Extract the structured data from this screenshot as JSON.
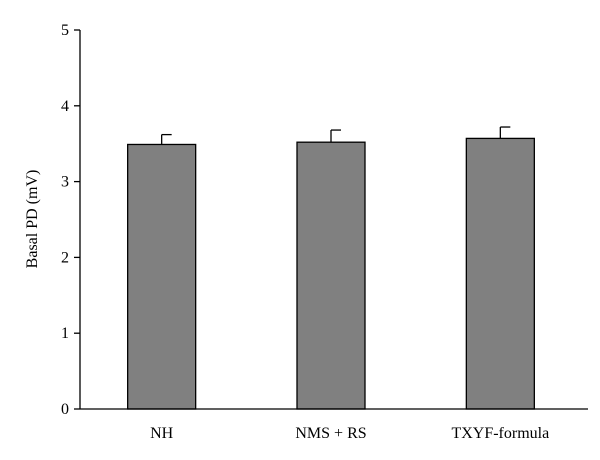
{
  "chart_data": {
    "type": "bar",
    "title": "",
    "xlabel": "",
    "ylabel": "Basal PD (mV)",
    "ylim": [
      0,
      5
    ],
    "yticks": [
      0,
      1,
      2,
      3,
      4,
      5
    ],
    "grid": false,
    "legend": "none",
    "categories": [
      "NH",
      "NMS + RS",
      "TXYF-formula"
    ],
    "values": [
      3.49,
      3.52,
      3.57
    ],
    "errors": [
      0.13,
      0.16,
      0.15
    ],
    "colors": {
      "bar_fill": "#808080",
      "bar_stroke": "#000000",
      "axis": "#000000"
    }
  }
}
